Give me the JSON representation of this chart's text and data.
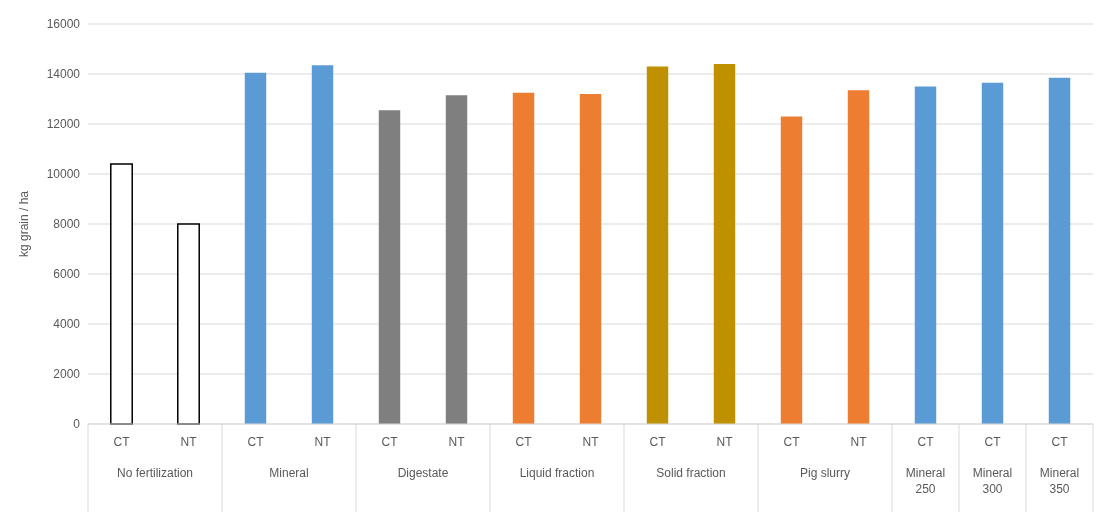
{
  "chart_data": {
    "type": "bar",
    "ylabel": "kg grain / ha",
    "categories": [
      "CT",
      "NT",
      "CT",
      "NT",
      "CT",
      "NT",
      "CT",
      "NT",
      "CT",
      "NT",
      "CT",
      "NT",
      "CT",
      "CT",
      "CT"
    ],
    "values": [
      10400,
      8000,
      14050,
      14350,
      12550,
      13150,
      13250,
      13200,
      14300,
      14400,
      12300,
      13350,
      13500,
      13650,
      13850
    ],
    "colors": [
      "#ffffff",
      "#ffffff",
      "#5b9bd5",
      "#5b9bd5",
      "#7f7f7f",
      "#7f7f7f",
      "#ed7d31",
      "#ed7d31",
      "#bf9000",
      "#bf9000",
      "#ed7d31",
      "#ed7d31",
      "#5b9bd5",
      "#5b9bd5",
      "#5b9bd5"
    ],
    "annotations": [
      "No fertilization",
      "Mineral",
      "Digestate",
      "Liquid fraction",
      "Solid fraction",
      "Pig slurry",
      "Mineral 250",
      "Mineral 300",
      "Mineral 350"
    ],
    "ylim": [
      0,
      16000
    ],
    "yticks": [
      0,
      2000,
      4000,
      6000,
      8000,
      10000,
      12000,
      14000,
      16000
    ],
    "grid": "y"
  }
}
